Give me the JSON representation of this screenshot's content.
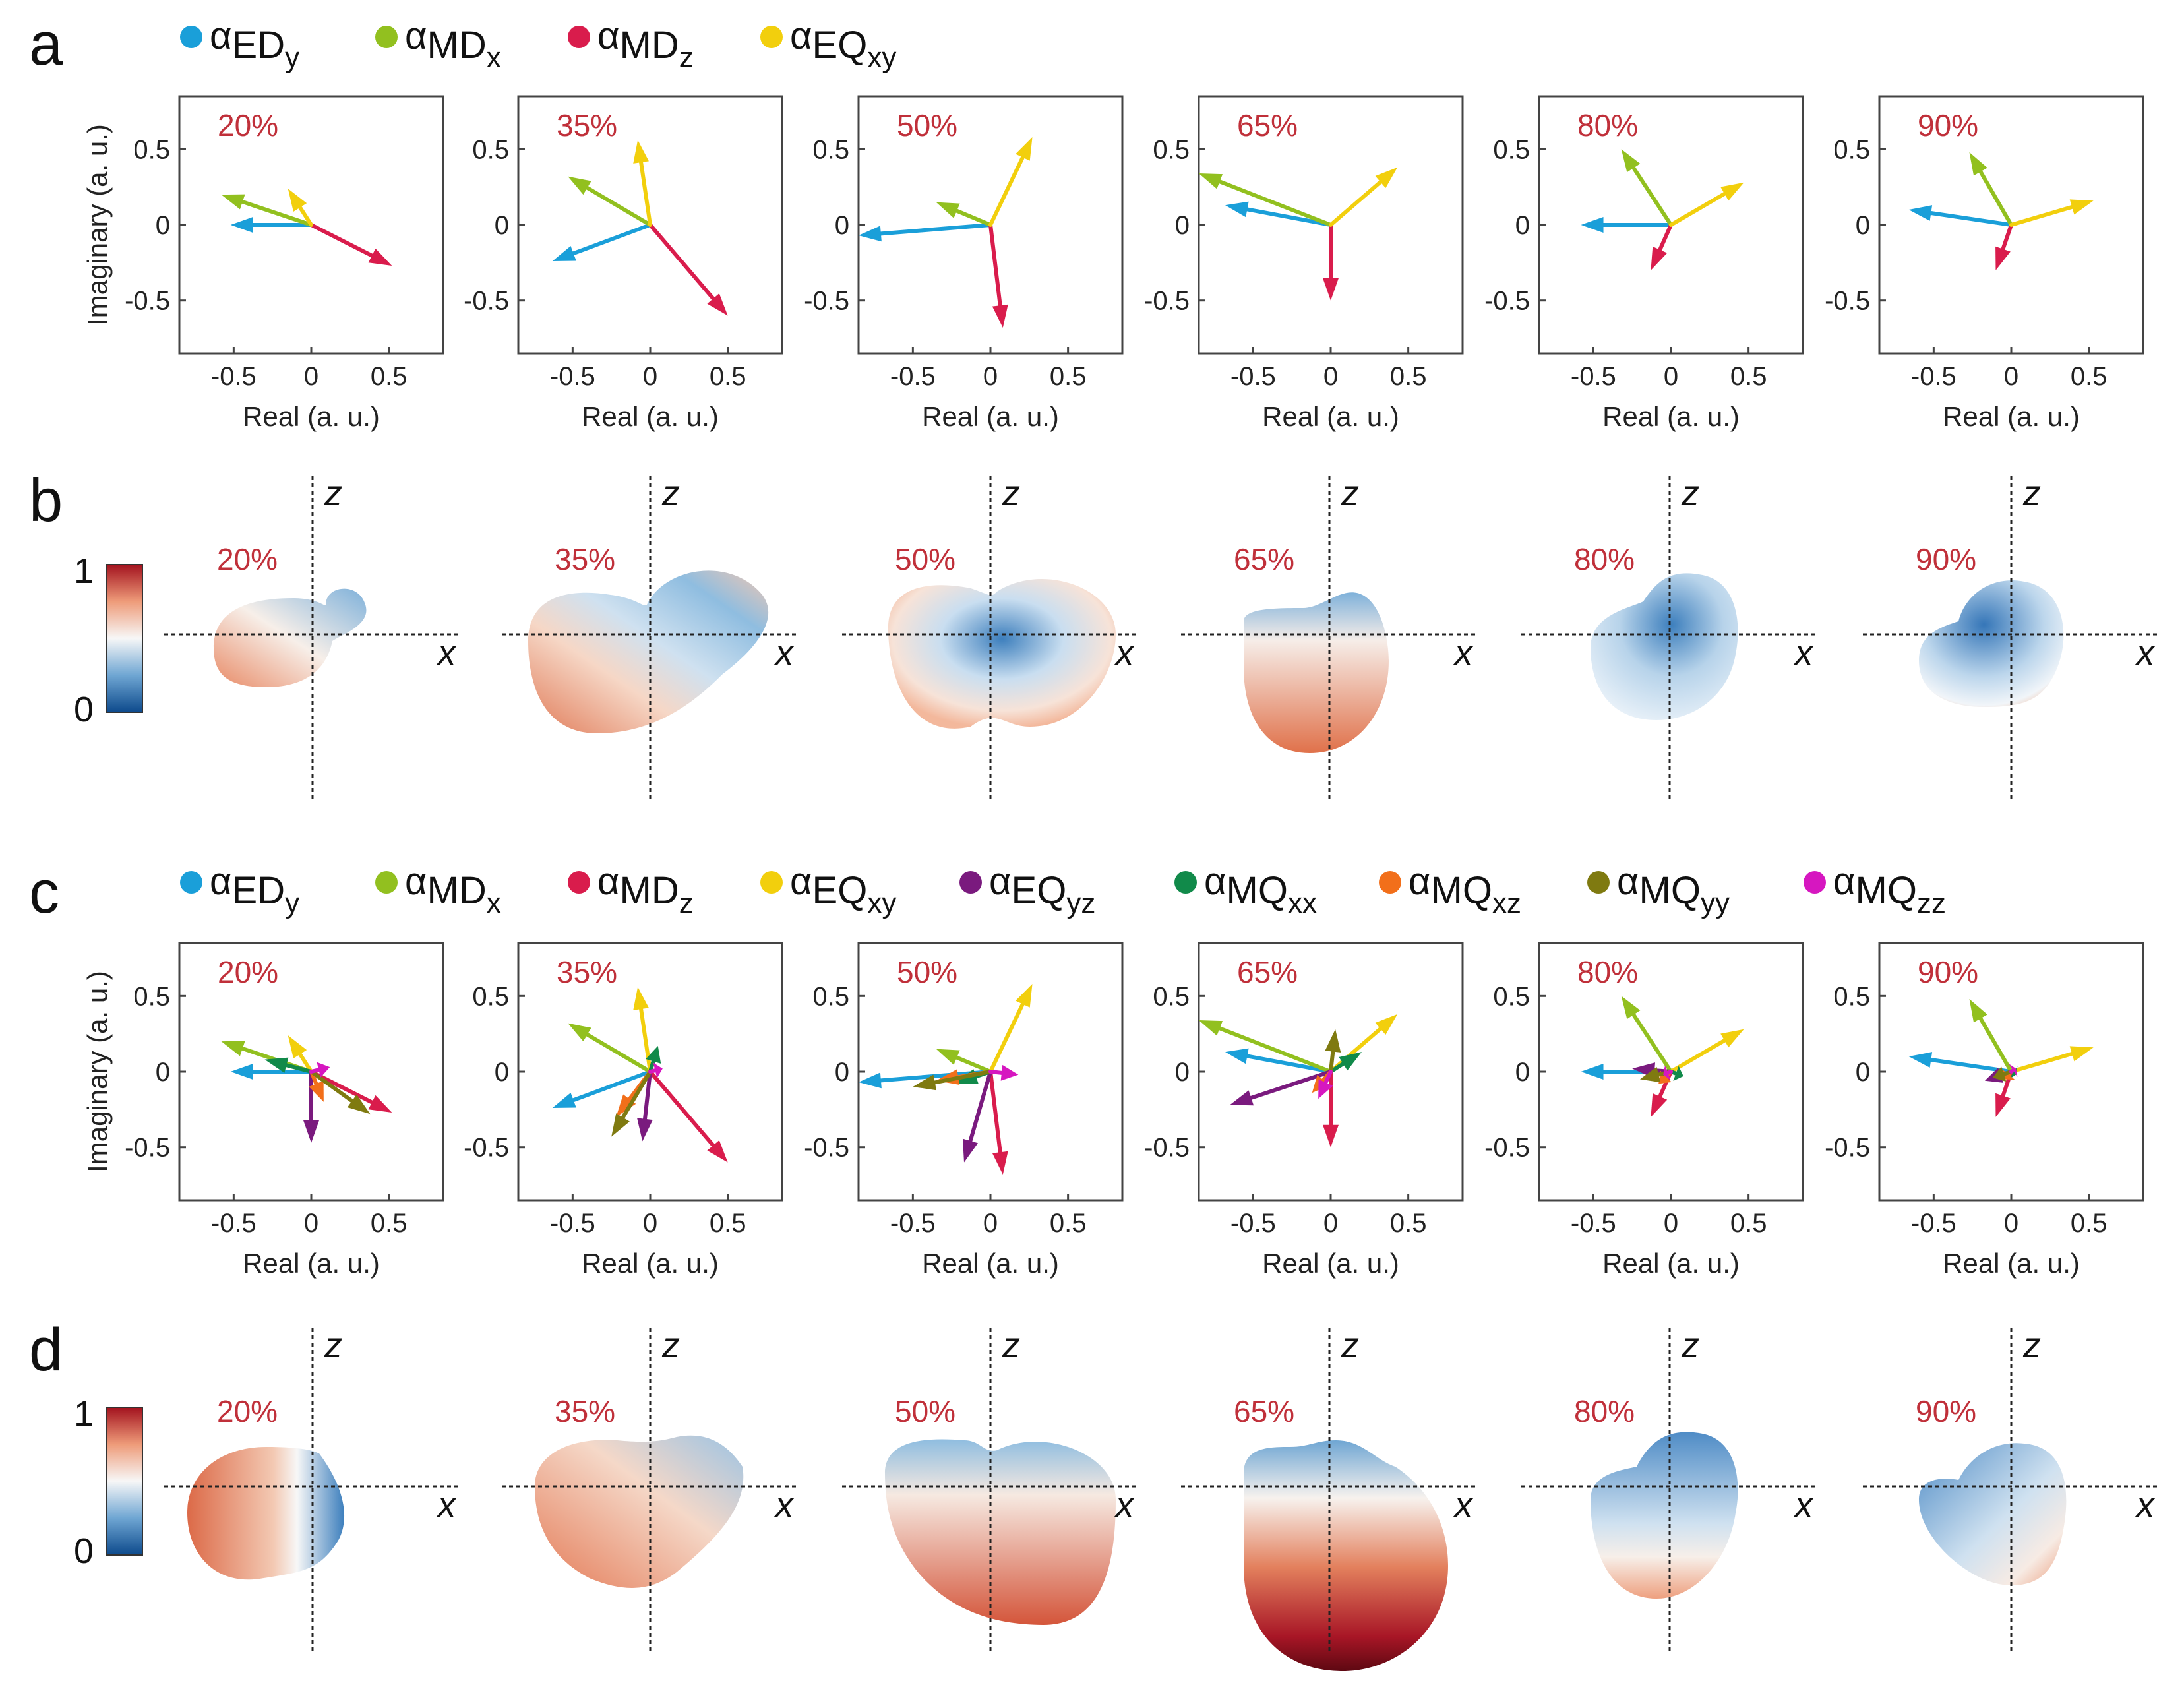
{
  "panel_labels": [
    "a",
    "b",
    "c",
    "d"
  ],
  "percent_color": "#c0303a",
  "legend_a": [
    {
      "symbol": "α",
      "main": "ED",
      "sub": "y",
      "color": "#1a9fd9"
    },
    {
      "symbol": "α",
      "main": "MD",
      "sub": "x",
      "color": "#92c01f"
    },
    {
      "symbol": "α",
      "main": "MD",
      "sub": "z",
      "color": "#d91c4c"
    },
    {
      "symbol": "α",
      "main": "EQ",
      "sub": "xy",
      "color": "#f2cf0d"
    }
  ],
  "legend_c": [
    {
      "symbol": "α",
      "main": "ED",
      "sub": "y",
      "color": "#1a9fd9"
    },
    {
      "symbol": "α",
      "main": "MD",
      "sub": "x",
      "color": "#92c01f"
    },
    {
      "symbol": "α",
      "main": "MD",
      "sub": "z",
      "color": "#d91c4c"
    },
    {
      "symbol": "α",
      "main": "EQ",
      "sub": "xy",
      "color": "#f2cf0d"
    },
    {
      "symbol": "α",
      "main": "EQ",
      "sub": "yz",
      "color": "#7a1a7e"
    },
    {
      "symbol": "α",
      "main": "MQ",
      "sub": "xx",
      "color": "#118a4a"
    },
    {
      "symbol": "α",
      "main": "MQ",
      "sub": "xz",
      "color": "#f26f1a"
    },
    {
      "symbol": "α",
      "main": "MQ",
      "sub": "yy",
      "color": "#7f7a10"
    },
    {
      "symbol": "α",
      "main": "MQ",
      "sub": "zz",
      "color": "#d617c0"
    }
  ],
  "colorbar": {
    "max_label": "1",
    "min_label": "0",
    "colormap": "RdBu (blue=0, white=0.5, red=1)"
  },
  "radiation_axis_labels": {
    "vertical": "z",
    "horizontal": "x"
  },
  "chart_data": [
    {
      "panel": "a",
      "type": "scatter",
      "description_kind": "complex-plane phasor arrows",
      "xlabel": "Real (a. u.)",
      "ylabel": "Imaginary (a. u.)",
      "xlim": [
        -0.85,
        0.85
      ],
      "ylim": [
        -0.85,
        0.85
      ],
      "xticks": [
        "-0.5",
        "0",
        "0.5"
      ],
      "yticks": [
        "0.5",
        "0",
        "-0.5"
      ],
      "subplots": [
        {
          "label": "20%",
          "series": [
            {
              "name": "α_EDy",
              "x": -0.52,
              "y": 0.0
            },
            {
              "name": "α_MDx",
              "x": -0.58,
              "y": 0.2
            },
            {
              "name": "α_MDz",
              "x": 0.52,
              "y": -0.27
            },
            {
              "name": "α_EQxy",
              "x": -0.15,
              "y": 0.24
            }
          ]
        },
        {
          "label": "35%",
          "series": [
            {
              "name": "α_EDy",
              "x": -0.63,
              "y": -0.24
            },
            {
              "name": "α_MDx",
              "x": -0.53,
              "y": 0.32
            },
            {
              "name": "α_MDz",
              "x": 0.5,
              "y": -0.6
            },
            {
              "name": "α_EQxy",
              "x": -0.08,
              "y": 0.56
            }
          ]
        },
        {
          "label": "50%",
          "series": [
            {
              "name": "α_EDy",
              "x": -0.85,
              "y": -0.07
            },
            {
              "name": "α_MDx",
              "x": -0.35,
              "y": 0.15
            },
            {
              "name": "α_MDz",
              "x": 0.08,
              "y": -0.68
            },
            {
              "name": "α_EQxy",
              "x": 0.27,
              "y": 0.58
            }
          ]
        },
        {
          "label": "65%",
          "series": [
            {
              "name": "α_EDy",
              "x": -0.68,
              "y": 0.13
            },
            {
              "name": "α_MDx",
              "x": -0.85,
              "y": 0.34
            },
            {
              "name": "α_MDz",
              "x": 0.0,
              "y": -0.5
            },
            {
              "name": "α_EQxy",
              "x": 0.43,
              "y": 0.38
            }
          ]
        },
        {
          "label": "80%",
          "series": [
            {
              "name": "α_EDy",
              "x": -0.58,
              "y": 0.0
            },
            {
              "name": "α_MDx",
              "x": -0.32,
              "y": 0.5
            },
            {
              "name": "α_MDz",
              "x": -0.13,
              "y": -0.3
            },
            {
              "name": "α_EQxy",
              "x": 0.47,
              "y": 0.28
            }
          ]
        },
        {
          "label": "90%",
          "series": [
            {
              "name": "α_EDy",
              "x": -0.66,
              "y": 0.1
            },
            {
              "name": "α_MDx",
              "x": -0.27,
              "y": 0.48
            },
            {
              "name": "α_MDz",
              "x": -0.1,
              "y": -0.3
            },
            {
              "name": "α_EQxy",
              "x": 0.53,
              "y": 0.16
            }
          ]
        }
      ]
    },
    {
      "panel": "b",
      "type": "heatmap",
      "description_kind": "normalized radiation patterns in x-z plane",
      "subplots": [
        {
          "label": "20%"
        },
        {
          "label": "35%"
        },
        {
          "label": "50%"
        },
        {
          "label": "65%"
        },
        {
          "label": "80%"
        },
        {
          "label": "90%"
        }
      ]
    },
    {
      "panel": "c",
      "type": "scatter",
      "description_kind": "complex-plane phasor arrows",
      "xlabel": "Real (a. u.)",
      "ylabel": "Imaginary (a. u.)",
      "xlim": [
        -0.85,
        0.85
      ],
      "ylim": [
        -0.85,
        0.85
      ],
      "xticks": [
        "-0.5",
        "0",
        "0.5"
      ],
      "yticks": [
        "0.5",
        "0",
        "-0.5"
      ],
      "subplots": [
        {
          "label": "20%",
          "series": [
            {
              "name": "α_EDy",
              "x": -0.52,
              "y": 0.0
            },
            {
              "name": "α_MDx",
              "x": -0.58,
              "y": 0.2
            },
            {
              "name": "α_MDz",
              "x": 0.52,
              "y": -0.27
            },
            {
              "name": "α_EQxy",
              "x": -0.15,
              "y": 0.24
            },
            {
              "name": "α_EQyz",
              "x": 0.0,
              "y": -0.47
            },
            {
              "name": "α_MQxx",
              "x": -0.3,
              "y": 0.08
            },
            {
              "name": "α_MQxz",
              "x": 0.08,
              "y": -0.2
            },
            {
              "name": "α_MQyy",
              "x": 0.38,
              "y": -0.28
            },
            {
              "name": "α_MQzz",
              "x": 0.12,
              "y": 0.03
            }
          ]
        },
        {
          "label": "35%",
          "series": [
            {
              "name": "α_EDy",
              "x": -0.63,
              "y": -0.24
            },
            {
              "name": "α_MDx",
              "x": -0.53,
              "y": 0.32
            },
            {
              "name": "α_MDz",
              "x": 0.5,
              "y": -0.6
            },
            {
              "name": "α_EQxy",
              "x": -0.08,
              "y": 0.56
            },
            {
              "name": "α_EQyz",
              "x": -0.05,
              "y": -0.46
            },
            {
              "name": "α_MQxx",
              "x": 0.05,
              "y": 0.17
            },
            {
              "name": "α_MQxz",
              "x": -0.22,
              "y": -0.3
            },
            {
              "name": "α_MQyy",
              "x": -0.25,
              "y": -0.43
            },
            {
              "name": "α_MQzz",
              "x": 0.08,
              "y": 0.02
            }
          ]
        },
        {
          "label": "50%",
          "series": [
            {
              "name": "α_EDy",
              "x": -0.85,
              "y": -0.07
            },
            {
              "name": "α_MDx",
              "x": -0.35,
              "y": 0.15
            },
            {
              "name": "α_MDz",
              "x": 0.08,
              "y": -0.68
            },
            {
              "name": "α_EQxy",
              "x": 0.27,
              "y": 0.58
            },
            {
              "name": "α_EQyz",
              "x": -0.17,
              "y": -0.6
            },
            {
              "name": "α_MQxx",
              "x": -0.23,
              "y": -0.08
            },
            {
              "name": "α_MQxz",
              "x": -0.35,
              "y": -0.06
            },
            {
              "name": "α_MQyy",
              "x": -0.5,
              "y": -0.1
            },
            {
              "name": "α_MQzz",
              "x": 0.18,
              "y": -0.02
            }
          ]
        },
        {
          "label": "65%",
          "series": [
            {
              "name": "α_EDy",
              "x": -0.68,
              "y": 0.13
            },
            {
              "name": "α_MDx",
              "x": -0.85,
              "y": 0.34
            },
            {
              "name": "α_MDz",
              "x": 0.0,
              "y": -0.5
            },
            {
              "name": "α_EQxy",
              "x": 0.43,
              "y": 0.38
            },
            {
              "name": "α_EQyz",
              "x": -0.65,
              "y": -0.22
            },
            {
              "name": "α_MQxx",
              "x": 0.2,
              "y": 0.13
            },
            {
              "name": "α_MQxz",
              "x": -0.12,
              "y": -0.14
            },
            {
              "name": "α_MQyy",
              "x": 0.03,
              "y": 0.28
            },
            {
              "name": "α_MQzz",
              "x": -0.08,
              "y": -0.18
            }
          ]
        },
        {
          "label": "80%",
          "series": [
            {
              "name": "α_EDy",
              "x": -0.58,
              "y": 0.0
            },
            {
              "name": "α_MDx",
              "x": -0.32,
              "y": 0.5
            },
            {
              "name": "α_MDz",
              "x": -0.13,
              "y": -0.3
            },
            {
              "name": "α_EQxy",
              "x": 0.47,
              "y": 0.28
            },
            {
              "name": "α_EQyz",
              "x": -0.25,
              "y": 0.02
            },
            {
              "name": "α_MQxx",
              "x": 0.08,
              "y": -0.03
            },
            {
              "name": "α_MQxz",
              "x": -0.08,
              "y": -0.08
            },
            {
              "name": "α_MQyy",
              "x": -0.2,
              "y": -0.05
            },
            {
              "name": "α_MQzz",
              "x": -0.05,
              "y": -0.02
            }
          ]
        },
        {
          "label": "90%",
          "series": [
            {
              "name": "α_EDy",
              "x": -0.66,
              "y": 0.1
            },
            {
              "name": "α_MDx",
              "x": -0.27,
              "y": 0.48
            },
            {
              "name": "α_MDz",
              "x": -0.1,
              "y": -0.3
            },
            {
              "name": "α_EQxy",
              "x": 0.53,
              "y": 0.16
            },
            {
              "name": "α_EQyz",
              "x": -0.17,
              "y": -0.06
            },
            {
              "name": "α_MQxx",
              "x": 0.03,
              "y": -0.02
            },
            {
              "name": "α_MQxz",
              "x": -0.04,
              "y": -0.05
            },
            {
              "name": "α_MQyy",
              "x": -0.12,
              "y": -0.04
            },
            {
              "name": "α_MQzz",
              "x": 0.03,
              "y": 0.02
            }
          ]
        }
      ]
    },
    {
      "panel": "d",
      "type": "heatmap",
      "description_kind": "normalized radiation patterns in x-z plane",
      "subplots": [
        {
          "label": "20%"
        },
        {
          "label": "35%"
        },
        {
          "label": "50%"
        },
        {
          "label": "65%"
        },
        {
          "label": "80%"
        },
        {
          "label": "90%"
        }
      ]
    }
  ]
}
